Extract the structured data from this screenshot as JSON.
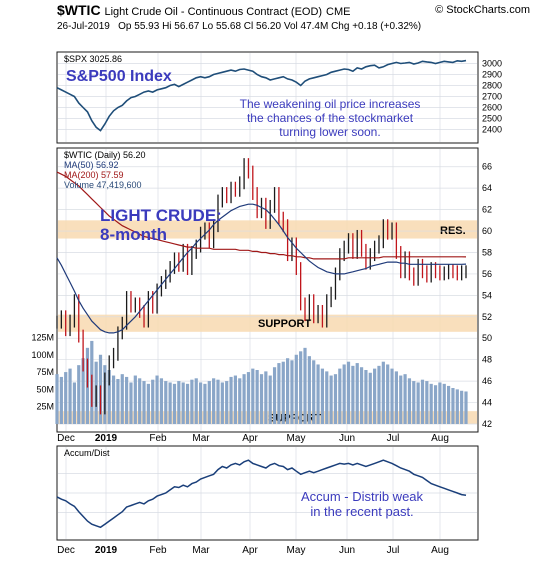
{
  "header": {
    "symbol": "$WTIC",
    "name": "Light Crude Oil - Continuous Contract (EOD)",
    "exchange": "CME",
    "site": "© StockCharts.com",
    "date": "26-Jul-2019",
    "quote": "Op 55.93  Hi 56.67  Lo 55.68  Cl 56.20  Vol 47.4M  Chg +0.18 (+0.32%)"
  },
  "colors": {
    "panel_border": "#1a1a1a",
    "spx_line": "#1f4e79",
    "price_line": "#8b1a1a",
    "ma50": "#1f3a7a",
    "ma200": "#a01818",
    "volume": "#8aa6c8",
    "band": "#f8d9b0",
    "annotation": "#3b3bbd",
    "accum": "#1a3f7a",
    "grid": "#d9dde4"
  },
  "chart_data": [
    {
      "type": "line",
      "panel": "spx",
      "legend": "$SPX 3025.86",
      "annotation_title": "S&P500 Index",
      "annotation": [
        "The weakening oil price increases",
        "the chances of the stockmarket",
        "turning lower soon."
      ],
      "y_ticks": [
        "3000",
        "2900",
        "2800",
        "2700",
        "2600",
        "2500",
        "2400"
      ],
      "ylim": [
        2350,
        3050
      ],
      "x": [
        0,
        4,
        8,
        12,
        16,
        20,
        24,
        28,
        32,
        36,
        40,
        44,
        48,
        52,
        56,
        60,
        64,
        68,
        72,
        76,
        80,
        84,
        88,
        92,
        96,
        100,
        104,
        108,
        112,
        116,
        120,
        124,
        128,
        132,
        136,
        140,
        144,
        148,
        152,
        156,
        160,
        164,
        168,
        172,
        176,
        180,
        184,
        188,
        192,
        196,
        200,
        204,
        208,
        212,
        216,
        220,
        224,
        228,
        232,
        236,
        240,
        244,
        248,
        252,
        256,
        260,
        264,
        268,
        272,
        276,
        280,
        284,
        288,
        292,
        296,
        300,
        304,
        308,
        312,
        316,
        320,
        324,
        328,
        332,
        336,
        340,
        344,
        348,
        352,
        356,
        360,
        364,
        368,
        372,
        376
      ],
      "values": [
        2780,
        2760,
        2740,
        2720,
        2700,
        2640,
        2600,
        2560,
        2480,
        2420,
        2390,
        2450,
        2520,
        2570,
        2600,
        2620,
        2660,
        2690,
        2700,
        2720,
        2740,
        2750,
        2740,
        2760,
        2770,
        2780,
        2800,
        2810,
        2790,
        2810,
        2830,
        2850,
        2870,
        2880,
        2870,
        2880,
        2900,
        2910,
        2920,
        2930,
        2940,
        2930,
        2945,
        2950,
        2940,
        2930,
        2900,
        2880,
        2870,
        2850,
        2860,
        2870,
        2880,
        2860,
        2850,
        2830,
        2800,
        2840,
        2860,
        2870,
        2880,
        2890,
        2900,
        2920,
        2930,
        2940,
        2950,
        2945,
        2930,
        2960,
        2950,
        2970,
        2980,
        2985,
        2960,
        2970,
        2990,
        3000,
        3010,
        3000,
        3005,
        3010,
        2995,
        3005,
        3020,
        3015,
        3010,
        3000,
        3010,
        3020,
        3015,
        3010,
        3025,
        3020,
        3026
      ]
    },
    {
      "type": "line",
      "panel": "price",
      "legend": {
        "price": "$WTIC (Daily) 56.20",
        "ma50": "MA(50) 56.92",
        "ma200": "MA(200) 57.59",
        "volume": "Volume 47,419,600"
      },
      "annotation": [
        "LIGHT CRUDE:",
        "8-month"
      ],
      "band_labels": {
        "res": "RES.",
        "support1": "SUPPORT",
        "support2": "SUPPORT"
      },
      "y_ticks": [
        "66",
        "64",
        "62",
        "60",
        "58",
        "56",
        "54",
        "52",
        "50",
        "48",
        "46",
        "44",
        "42"
      ],
      "volume_ticks": [
        "125M",
        "100M",
        "75M",
        "50M",
        "25M"
      ],
      "ylim": [
        42,
        67
      ],
      "resistance_band": [
        59.3,
        61.0
      ],
      "support_band_1": [
        50.6,
        52.2
      ],
      "support_band_2": [
        42.0,
        43.2
      ],
      "x": [
        0,
        4,
        8,
        12,
        16,
        20,
        24,
        28,
        32,
        36,
        40,
        44,
        48,
        52,
        56,
        60,
        64,
        68,
        72,
        76,
        80,
        84,
        88,
        92,
        96,
        100,
        104,
        108,
        112,
        116,
        120,
        124,
        128,
        132,
        136,
        140,
        144,
        148,
        152,
        156,
        160,
        164,
        168,
        172,
        176,
        180,
        184,
        188,
        192,
        196,
        200,
        204,
        208,
        212,
        216,
        220,
        224,
        228,
        232,
        236,
        240,
        244,
        248,
        252,
        256,
        260,
        264,
        268,
        272,
        276,
        280,
        284,
        288,
        292,
        296,
        300,
        304,
        308,
        312,
        316,
        320,
        324,
        328,
        332,
        336,
        340,
        344,
        348,
        352,
        356,
        360,
        364,
        368,
        372,
        376
      ],
      "close": [
        51.5,
        52.0,
        50.8,
        51.6,
        53.5,
        50.2,
        47.5,
        46.0,
        44.2,
        45.0,
        43.5,
        46.2,
        47.8,
        48.5,
        50.5,
        51.4,
        53.8,
        53.0,
        53.2,
        52.5,
        51.6,
        53.8,
        52.9,
        54.5,
        55.2,
        55.8,
        56.6,
        57.4,
        56.8,
        58.2,
        56.5,
        58.0,
        58.6,
        59.8,
        60.2,
        59.0,
        60.5,
        62.8,
        63.5,
        63.2,
        64.0,
        63.8,
        64.5,
        66.2,
        65.5,
        63.5,
        61.8,
        62.5,
        60.8,
        62.3,
        63.5,
        61.2,
        60.5,
        57.8,
        58.8,
        56.5,
        53.2,
        52.2,
        53.5,
        52.0,
        52.5,
        51.6,
        53.5,
        54.2,
        56.0,
        57.8,
        58.5,
        59.2,
        58.0,
        59.5,
        58.2,
        57.0,
        57.8,
        58.5,
        59.0,
        60.5,
        59.8,
        60.2,
        58.0,
        56.2,
        57.5,
        56.0,
        55.5,
        56.8,
        56.2,
        55.8,
        56.5,
        56.2,
        56.0,
        56.1,
        56.3,
        56.2,
        56.0,
        56.2,
        56.2
      ],
      "ma50": [
        57.5,
        56.8,
        56.0,
        55.2,
        54.4,
        53.5,
        52.8,
        52.2,
        51.6,
        51.2,
        50.8,
        50.6,
        50.5,
        50.5,
        50.6,
        50.8,
        51.2,
        51.6,
        52.0,
        52.5,
        53.0,
        53.5,
        54.0,
        54.5,
        55.0,
        55.5,
        56.0,
        56.5,
        57.0,
        57.5,
        58.0,
        58.4,
        58.9,
        59.3,
        59.7,
        60.1,
        60.6,
        61.0,
        61.3,
        61.6,
        61.9,
        62.1,
        62.3,
        62.4,
        62.5,
        62.5,
        62.4,
        62.2,
        62.0,
        61.6,
        61.1,
        60.6,
        60.0,
        59.4,
        58.9,
        58.4,
        58.0,
        57.6,
        57.2,
        56.9,
        56.6,
        56.4,
        56.2,
        56.1,
        56.0,
        56.0,
        56.0,
        56.1,
        56.2,
        56.3,
        56.4,
        56.5,
        56.7,
        56.8,
        56.9,
        57.0,
        57.1,
        57.1,
        57.1,
        57.0,
        57.0,
        56.9,
        56.9,
        56.9,
        56.9,
        56.9,
        56.9,
        56.9,
        56.9,
        56.9,
        56.9,
        56.9,
        56.9,
        56.9,
        56.92
      ],
      "ma200": [
        65.5,
        65.3,
        65.1,
        64.8,
        64.5,
        64.2,
        63.8,
        63.4,
        63.0,
        62.6,
        62.2,
        61.8,
        61.4,
        61.1,
        60.8,
        60.5,
        60.3,
        60.1,
        59.9,
        59.7,
        59.5,
        59.4,
        59.3,
        59.2,
        59.1,
        59.0,
        58.9,
        58.8,
        58.7,
        58.6,
        58.5,
        58.5,
        58.4,
        58.4,
        58.4,
        58.4,
        58.3,
        58.3,
        58.3,
        58.3,
        58.3,
        58.3,
        58.2,
        58.2,
        58.2,
        58.1,
        58.1,
        58.0,
        58.0,
        57.9,
        57.9,
        57.8,
        57.8,
        57.7,
        57.7,
        57.6,
        57.6,
        57.5,
        57.5,
        57.4,
        57.4,
        57.4,
        57.4,
        57.4,
        57.4,
        57.4,
        57.4,
        57.5,
        57.5,
        57.5,
        57.5,
        57.5,
        57.5,
        57.5,
        57.5,
        57.6,
        57.6,
        57.6,
        57.6,
        57.6,
        57.6,
        57.6,
        57.6,
        57.6,
        57.6,
        57.6,
        57.6,
        57.6,
        57.6,
        57.6,
        57.6,
        57.6,
        57.6,
        57.6,
        57.59
      ],
      "volume_millions": [
        72,
        68,
        75,
        80,
        60,
        85,
        95,
        110,
        120,
        90,
        100,
        85,
        78,
        70,
        65,
        72,
        68,
        60,
        70,
        66,
        62,
        58,
        64,
        70,
        66,
        62,
        60,
        58,
        62,
        60,
        58,
        64,
        66,
        60,
        58,
        62,
        66,
        64,
        60,
        62,
        68,
        70,
        66,
        72,
        75,
        80,
        78,
        72,
        76,
        70,
        82,
        88,
        90,
        95,
        92,
        100,
        105,
        110,
        98,
        92,
        86,
        80,
        76,
        70,
        72,
        80,
        86,
        90,
        84,
        88,
        82,
        78,
        74,
        80,
        84,
        90,
        86,
        80,
        76,
        70,
        72,
        66,
        62,
        60,
        64,
        62,
        58,
        56,
        60,
        58,
        55,
        52,
        50,
        48,
        47
      ]
    },
    {
      "type": "line",
      "panel": "accum",
      "legend": "Accum/Dist",
      "annotation": [
        "Accum - Distrib weak",
        "in  the  recent  past."
      ],
      "ylim": [
        0,
        100
      ],
      "x": [
        0,
        4,
        8,
        12,
        16,
        20,
        24,
        28,
        32,
        36,
        40,
        44,
        48,
        52,
        56,
        60,
        64,
        68,
        72,
        76,
        80,
        84,
        88,
        92,
        96,
        100,
        104,
        108,
        112,
        116,
        120,
        124,
        128,
        132,
        136,
        140,
        144,
        148,
        152,
        156,
        160,
        164,
        168,
        172,
        176,
        180,
        184,
        188,
        192,
        196,
        200,
        204,
        208,
        212,
        216,
        220,
        224,
        228,
        232,
        236,
        240,
        244,
        248,
        252,
        256,
        260,
        264,
        268,
        272,
        276,
        280,
        284,
        288,
        292,
        296,
        300,
        304,
        308,
        312,
        316,
        320,
        324,
        328,
        332,
        336,
        340,
        344,
        348,
        352,
        356,
        360,
        364,
        368,
        372,
        376
      ],
      "values": [
        45,
        42,
        40,
        36,
        33,
        26,
        20,
        14,
        10,
        8,
        6,
        10,
        14,
        18,
        22,
        26,
        32,
        34,
        36,
        38,
        36,
        40,
        42,
        46,
        48,
        50,
        54,
        58,
        57,
        60,
        58,
        62,
        64,
        68,
        70,
        72,
        74,
        80,
        84,
        82,
        86,
        88,
        86,
        90,
        92,
        88,
        86,
        84,
        82,
        86,
        88,
        85,
        84,
        80,
        82,
        78,
        74,
        76,
        78,
        76,
        78,
        80,
        82,
        84,
        86,
        88,
        87,
        88,
        86,
        88,
        86,
        84,
        86,
        88,
        90,
        92,
        90,
        88,
        85,
        82,
        80,
        78,
        74,
        72,
        70,
        66,
        62,
        60,
        58,
        56,
        54,
        52,
        50,
        48,
        47
      ]
    }
  ],
  "months": [
    "Dec",
    "2019",
    "Feb",
    "Mar",
    "Apr",
    "May",
    "Jun",
    "Jul",
    "Aug"
  ]
}
